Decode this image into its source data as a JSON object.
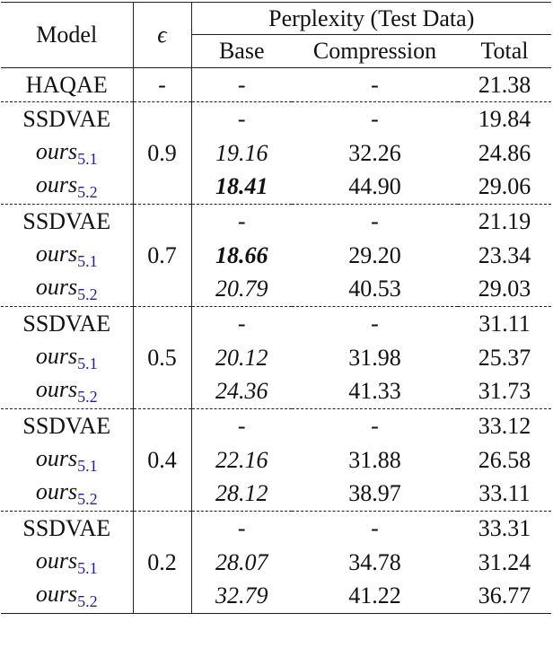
{
  "header": {
    "model": "Model",
    "epsilon": "ϵ",
    "perplexity": "Perplexity (Test Data)",
    "base": "Base",
    "compression": "Compression",
    "total": "Total"
  },
  "baseline": {
    "model": "HAQAE",
    "epsilon": "-",
    "base": "-",
    "compression": "-",
    "total": "21.38"
  },
  "groups": [
    {
      "epsilon": "0.9",
      "rows": [
        {
          "model": "SSDVAE",
          "base": "-",
          "compression": "-",
          "total": "19.84"
        },
        {
          "model": "ours",
          "sub": "5.1",
          "base": "19.16",
          "compression": "32.26",
          "total": "24.86"
        },
        {
          "model": "ours",
          "sub": "5.2",
          "base": "18.41",
          "bold_base": true,
          "compression": "44.90",
          "total": "29.06"
        }
      ]
    },
    {
      "epsilon": "0.7",
      "rows": [
        {
          "model": "SSDVAE",
          "base": "-",
          "compression": "-",
          "total": "21.19"
        },
        {
          "model": "ours",
          "sub": "5.1",
          "base": "18.66",
          "bold_base": true,
          "compression": "29.20",
          "total": "23.34"
        },
        {
          "model": "ours",
          "sub": "5.2",
          "base": "20.79",
          "compression": "40.53",
          "total": "29.03"
        }
      ]
    },
    {
      "epsilon": "0.5",
      "rows": [
        {
          "model": "SSDVAE",
          "base": "-",
          "compression": "-",
          "total": "31.11"
        },
        {
          "model": "ours",
          "sub": "5.1",
          "base": "20.12",
          "compression": "31.98",
          "total": "25.37"
        },
        {
          "model": "ours",
          "sub": "5.2",
          "base": "24.36",
          "compression": "41.33",
          "total": "31.73"
        }
      ]
    },
    {
      "epsilon": "0.4",
      "rows": [
        {
          "model": "SSDVAE",
          "base": "-",
          "compression": "-",
          "total": "33.12"
        },
        {
          "model": "ours",
          "sub": "5.1",
          "base": "22.16",
          "compression": "31.88",
          "total": "26.58"
        },
        {
          "model": "ours",
          "sub": "5.2",
          "base": "28.12",
          "compression": "38.97",
          "total": "33.11"
        }
      ]
    },
    {
      "epsilon": "0.2",
      "rows": [
        {
          "model": "SSDVAE",
          "base": "-",
          "compression": "-",
          "total": "33.31"
        },
        {
          "model": "ours",
          "sub": "5.1",
          "base": "28.07",
          "compression": "34.78",
          "total": "31.24"
        },
        {
          "model": "ours",
          "sub": "5.2",
          "base": "32.79",
          "compression": "41.22",
          "total": "36.77"
        }
      ]
    }
  ]
}
